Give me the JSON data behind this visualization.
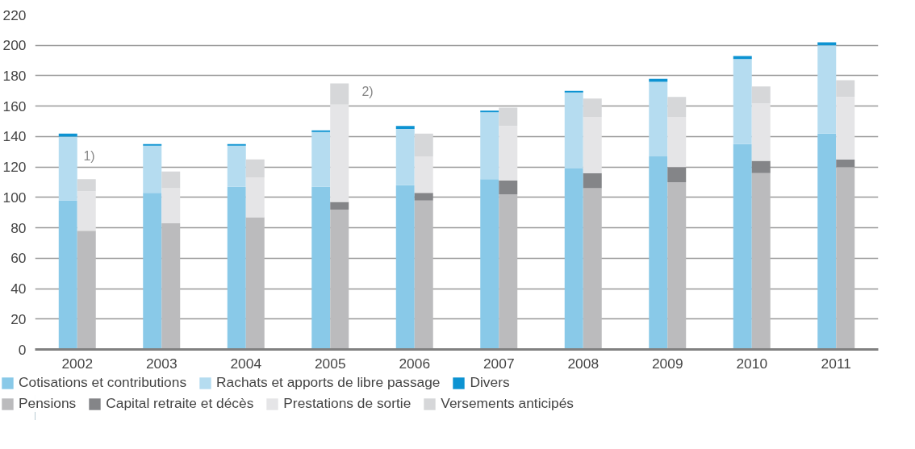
{
  "chart_data": [
    {
      "type": "bar",
      "stacked": true,
      "categories": [
        "2002",
        "2003",
        "2004",
        "2005",
        "2006",
        "2007",
        "2008",
        "2009",
        "2010",
        "2011"
      ],
      "series": [
        {
          "name": "Cotisations et contributions",
          "color": "#89c9e8",
          "values": [
            98,
            103,
            107,
            107,
            108,
            112,
            119,
            127,
            135,
            142
          ]
        },
        {
          "name": "Rachats et apports de libre passage",
          "color": "#b5dcf0",
          "values": [
            42,
            31,
            27,
            36,
            37,
            44,
            50,
            49,
            56,
            58
          ]
        },
        {
          "name": "Divers",
          "color": "#0d93d2",
          "values": [
            2,
            1,
            1,
            1,
            2,
            1,
            1,
            2,
            2,
            2
          ]
        }
      ],
      "ylim": [
        0,
        220
      ],
      "yticks": [
        0,
        20,
        40,
        60,
        80,
        100,
        120,
        140,
        160,
        180,
        200,
        220
      ],
      "grid": "y",
      "legend": "bottom",
      "annotations": [
        "1)",
        "2)"
      ]
    },
    {
      "type": "bar",
      "stacked": true,
      "categories": [
        "2002",
        "2003",
        "2004",
        "2005",
        "2006",
        "2007",
        "2008",
        "2009",
        "2010",
        "2011"
      ],
      "series": [
        {
          "name": "Pensions",
          "color": "#bbbbbd",
          "values": [
            78,
            83,
            87,
            92,
            98,
            102,
            106,
            110,
            116,
            120
          ]
        },
        {
          "name": "Capital retraite et décès",
          "color": "#848588",
          "values": [
            0,
            0,
            0,
            5,
            5,
            9,
            10,
            10,
            8,
            5
          ]
        },
        {
          "name": "Prestations de sortie",
          "color": "#e5e5e7",
          "values": [
            26,
            23,
            26,
            64,
            24,
            36,
            37,
            33,
            38,
            41
          ]
        },
        {
          "name": "Versements anticipés",
          "color": "#d6d7d9",
          "values": [
            8,
            11,
            12,
            14,
            15,
            12,
            12,
            13,
            11,
            11
          ]
        }
      ],
      "ylim": [
        0,
        220
      ],
      "tick_labels": false,
      "legend": "bottom"
    }
  ]
}
